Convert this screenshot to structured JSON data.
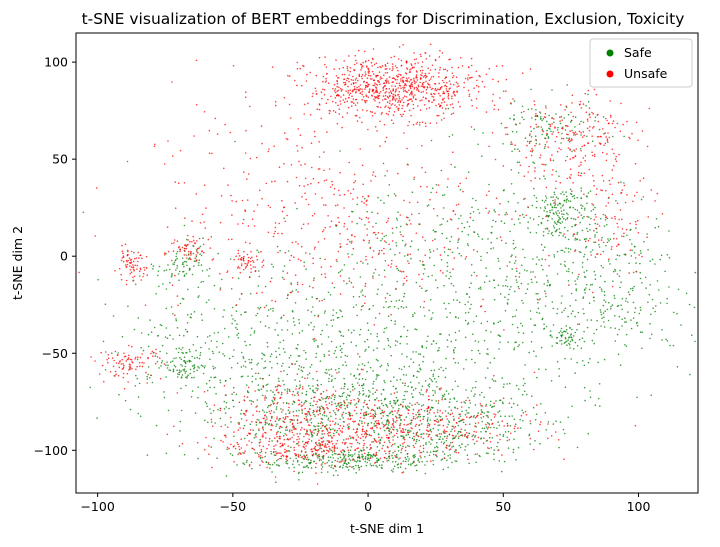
{
  "chart_data": {
    "type": "scatter",
    "title": "t-SNE visualization of BERT embeddings for Discrimination, Exclusion, Toxicity",
    "xlabel": "t-SNE dim 1",
    "ylabel": "t-SNE dim 2",
    "xlim": [
      -108,
      122
    ],
    "ylim": [
      -122,
      115
    ],
    "xticks": [
      -100,
      -50,
      0,
      50,
      100
    ],
    "yticks": [
      -100,
      -50,
      0,
      50,
      100
    ],
    "grid": false,
    "legend_position": "upper right",
    "series": [
      {
        "name": "Safe",
        "color": "#008000",
        "clusters": [
          {
            "cx": -5,
            "cy": -105,
            "sx": 20,
            "sy": 3,
            "n": 300
          },
          {
            "cx": 10,
            "cy": -78,
            "sx": 30,
            "sy": 8,
            "n": 350
          },
          {
            "cx": 25,
            "cy": -92,
            "sx": 20,
            "sy": 7,
            "n": 250
          },
          {
            "cx": -25,
            "cy": -85,
            "sx": 20,
            "sy": 10,
            "n": 220
          },
          {
            "cx": 72,
            "cy": 22,
            "sx": 6,
            "sy": 8,
            "n": 160
          },
          {
            "cx": 65,
            "cy": 65,
            "sx": 10,
            "sy": 8,
            "n": 120
          },
          {
            "cx": -68,
            "cy": -55,
            "sx": 5,
            "sy": 5,
            "n": 90
          },
          {
            "cx": -70,
            "cy": -5,
            "sx": 4,
            "sy": 5,
            "n": 70
          },
          {
            "cx": 73,
            "cy": -42,
            "sx": 3,
            "sy": 3,
            "n": 50
          },
          {
            "cx": 30,
            "cy": -30,
            "sx": 40,
            "sy": 25,
            "n": 550
          },
          {
            "cx": 85,
            "cy": -10,
            "sx": 15,
            "sy": 20,
            "n": 250
          },
          {
            "cx": -50,
            "cy": -40,
            "sx": 25,
            "sy": 20,
            "n": 280
          },
          {
            "cx": 40,
            "cy": 10,
            "sx": 25,
            "sy": 20,
            "n": 200
          },
          {
            "cx": -10,
            "cy": -60,
            "sx": 30,
            "sy": 10,
            "n": 200
          }
        ]
      },
      {
        "name": "Unsafe",
        "color": "#ff0000",
        "clusters": [
          {
            "cx": 10,
            "cy": 87,
            "sx": 16,
            "sy": 8,
            "n": 800
          },
          {
            "cx": 75,
            "cy": 60,
            "sx": 12,
            "sy": 12,
            "n": 230
          },
          {
            "cx": -88,
            "cy": -5,
            "sx": 3,
            "sy": 4,
            "n": 70
          },
          {
            "cx": -88,
            "cy": -55,
            "sx": 6,
            "sy": 4,
            "n": 90
          },
          {
            "cx": -45,
            "cy": -3,
            "sx": 3,
            "sy": 3,
            "n": 50
          },
          {
            "cx": -65,
            "cy": 4,
            "sx": 4,
            "sy": 3,
            "n": 50
          },
          {
            "cx": -20,
            "cy": -97,
            "sx": 18,
            "sy": 6,
            "n": 350
          },
          {
            "cx": 20,
            "cy": -88,
            "sx": 22,
            "sy": 8,
            "n": 350
          },
          {
            "cx": -25,
            "cy": -80,
            "sx": 15,
            "sy": 8,
            "n": 220
          },
          {
            "cx": -30,
            "cy": 30,
            "sx": 30,
            "sy": 30,
            "n": 260
          },
          {
            "cx": 10,
            "cy": 10,
            "sx": 35,
            "sy": 25,
            "n": 250
          },
          {
            "cx": 90,
            "cy": 15,
            "sx": 8,
            "sy": 15,
            "n": 90
          }
        ]
      }
    ]
  }
}
